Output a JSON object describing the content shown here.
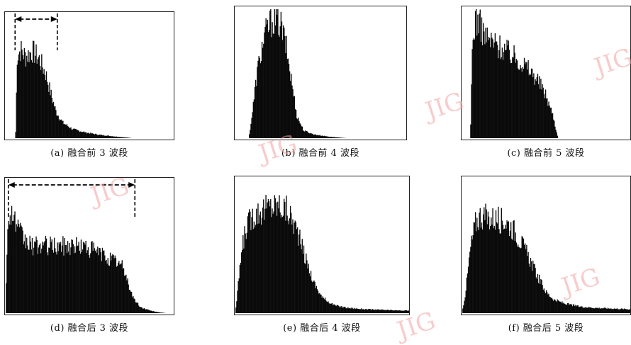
{
  "watermark": "JIG",
  "chart_data": [
    {
      "id": "a",
      "type": "area",
      "caption": "(a) 融合前 3 波段",
      "profile": [
        [
          0,
          0
        ],
        [
          0.06,
          0
        ],
        [
          0.07,
          0.75
        ],
        [
          0.09,
          0.8
        ],
        [
          0.12,
          0.74
        ],
        [
          0.16,
          0.79
        ],
        [
          0.2,
          0.72
        ],
        [
          0.24,
          0.58
        ],
        [
          0.27,
          0.4
        ],
        [
          0.3,
          0.24
        ],
        [
          0.34,
          0.14
        ],
        [
          0.4,
          0.08
        ],
        [
          0.48,
          0.05
        ],
        [
          0.56,
          0.03
        ],
        [
          0.65,
          0.015
        ],
        [
          0.72,
          0.005
        ],
        [
          0.75,
          0
        ],
        [
          1,
          0
        ]
      ],
      "arrow": {
        "x1": 0.06,
        "x2": 0.31
      }
    },
    {
      "id": "b",
      "type": "area",
      "caption": "(b) 融合前 4 波段",
      "profile": [
        [
          0,
          0
        ],
        [
          0.08,
          0
        ],
        [
          0.1,
          0.2
        ],
        [
          0.13,
          0.55
        ],
        [
          0.17,
          0.82
        ],
        [
          0.21,
          0.95
        ],
        [
          0.24,
          0.97
        ],
        [
          0.27,
          0.9
        ],
        [
          0.3,
          0.72
        ],
        [
          0.33,
          0.45
        ],
        [
          0.36,
          0.18
        ],
        [
          0.4,
          0.06
        ],
        [
          0.46,
          0.03
        ],
        [
          0.53,
          0.015
        ],
        [
          0.6,
          0.005
        ],
        [
          0.65,
          0
        ],
        [
          1,
          0
        ]
      ]
    },
    {
      "id": "c",
      "type": "area",
      "caption": "(c) 融合前 5 波段",
      "profile": [
        [
          0,
          0
        ],
        [
          0.05,
          0
        ],
        [
          0.06,
          0.7
        ],
        [
          0.08,
          0.98
        ],
        [
          0.11,
          0.9
        ],
        [
          0.15,
          0.8
        ],
        [
          0.2,
          0.76
        ],
        [
          0.25,
          0.72
        ],
        [
          0.3,
          0.67
        ],
        [
          0.35,
          0.62
        ],
        [
          0.4,
          0.55
        ],
        [
          0.45,
          0.47
        ],
        [
          0.5,
          0.34
        ],
        [
          0.54,
          0.18
        ],
        [
          0.56,
          0.05
        ],
        [
          0.57,
          0
        ],
        [
          1,
          0
        ]
      ]
    },
    {
      "id": "d",
      "type": "area",
      "caption": "(d) 融合后 3 波段",
      "profile": [
        [
          0,
          0
        ],
        [
          0.01,
          0.6
        ],
        [
          0.03,
          0.88
        ],
        [
          0.05,
          0.8
        ],
        [
          0.08,
          0.68
        ],
        [
          0.12,
          0.6
        ],
        [
          0.16,
          0.56
        ],
        [
          0.22,
          0.57
        ],
        [
          0.3,
          0.56
        ],
        [
          0.38,
          0.57
        ],
        [
          0.46,
          0.56
        ],
        [
          0.54,
          0.52
        ],
        [
          0.6,
          0.47
        ],
        [
          0.66,
          0.43
        ],
        [
          0.7,
          0.38
        ],
        [
          0.73,
          0.24
        ],
        [
          0.76,
          0.12
        ],
        [
          0.8,
          0.05
        ],
        [
          0.86,
          0.02
        ],
        [
          0.92,
          0.005
        ],
        [
          0.95,
          0
        ],
        [
          1,
          0
        ]
      ],
      "arrow": {
        "x1": 0.02,
        "x2": 0.77
      }
    },
    {
      "id": "e",
      "type": "area",
      "caption": "(e) 融合后 4 波段",
      "profile": [
        [
          0,
          0
        ],
        [
          0.01,
          0.1
        ],
        [
          0.03,
          0.4
        ],
        [
          0.06,
          0.66
        ],
        [
          0.1,
          0.76
        ],
        [
          0.15,
          0.8
        ],
        [
          0.2,
          0.83
        ],
        [
          0.25,
          0.84
        ],
        [
          0.3,
          0.8
        ],
        [
          0.35,
          0.66
        ],
        [
          0.4,
          0.44
        ],
        [
          0.45,
          0.24
        ],
        [
          0.5,
          0.12
        ],
        [
          0.57,
          0.06
        ],
        [
          0.65,
          0.04
        ],
        [
          0.75,
          0.03
        ],
        [
          0.85,
          0.025
        ],
        [
          0.95,
          0.02
        ],
        [
          1,
          0.02
        ]
      ]
    },
    {
      "id": "f",
      "type": "area",
      "caption": "(f) 融合后 5 波段",
      "profile": [
        [
          0,
          0
        ],
        [
          0.02,
          0.15
        ],
        [
          0.05,
          0.5
        ],
        [
          0.08,
          0.7
        ],
        [
          0.11,
          0.76
        ],
        [
          0.15,
          0.74
        ],
        [
          0.2,
          0.73
        ],
        [
          0.25,
          0.72
        ],
        [
          0.3,
          0.66
        ],
        [
          0.35,
          0.55
        ],
        [
          0.4,
          0.42
        ],
        [
          0.45,
          0.28
        ],
        [
          0.5,
          0.16
        ],
        [
          0.55,
          0.1
        ],
        [
          0.62,
          0.07
        ],
        [
          0.7,
          0.05
        ],
        [
          0.8,
          0.04
        ],
        [
          0.9,
          0.035
        ],
        [
          1,
          0.03
        ]
      ]
    }
  ]
}
